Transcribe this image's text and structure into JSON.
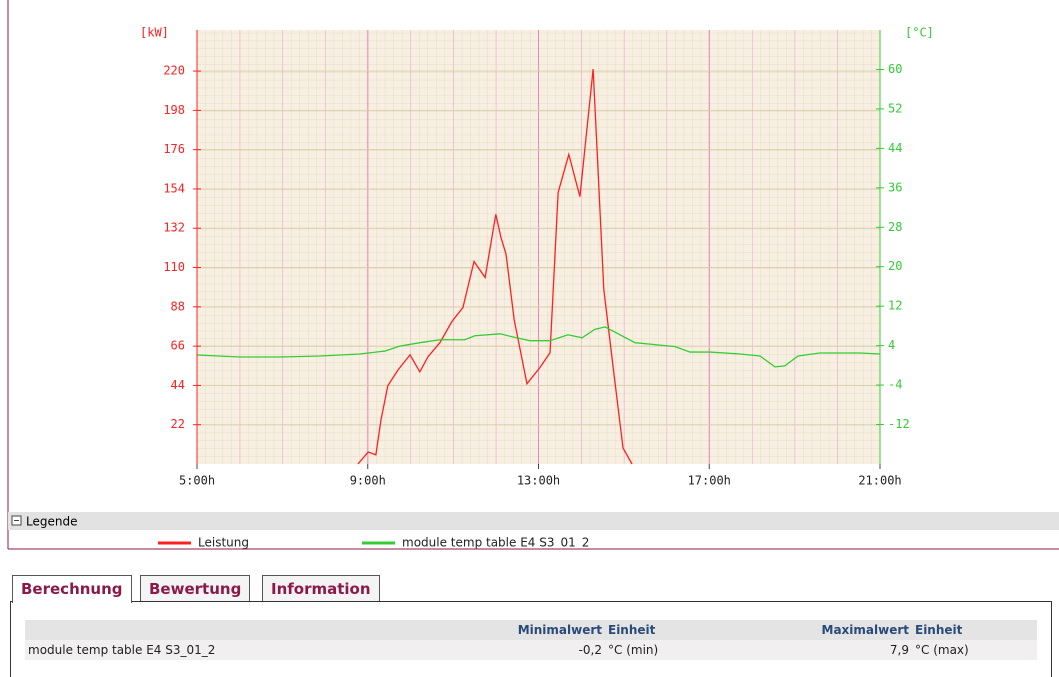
{
  "chart_data": {
    "type": "line",
    "y_label": "[kW]",
    "y2_label": "[°C]",
    "xlim": [
      5,
      21
    ],
    "xticks": [
      {
        "value": 5,
        "label": "5:00h"
      },
      {
        "value": 9,
        "label": "9:00h"
      },
      {
        "value": 13,
        "label": "13:00h"
      },
      {
        "value": 17,
        "label": "17:00h"
      },
      {
        "value": 21,
        "label": "21:00h"
      }
    ],
    "ylim": [
      0,
      243
    ],
    "yticks": [
      22,
      44,
      66,
      88,
      110,
      132,
      154,
      176,
      198,
      220
    ],
    "y2lim": [
      -20,
      68
    ],
    "y2ticks": [
      -12,
      -4,
      4,
      12,
      20,
      28,
      36,
      44,
      52,
      60
    ],
    "grid": true,
    "series": [
      {
        "name": "Leistung",
        "color": "#ff2020",
        "x": [
          8.77,
          9.01,
          9.19,
          9.31,
          9.47,
          9.71,
          9.99,
          10.22,
          10.41,
          10.69,
          10.97,
          11.23,
          11.49,
          11.75,
          12.0,
          12.12,
          12.24,
          12.43,
          12.73,
          13.03,
          13.27,
          13.46,
          13.71,
          13.97,
          14.28,
          14.53,
          14.77,
          14.98,
          15.19
        ],
        "values": [
          0,
          6.7,
          5.1,
          24.7,
          43.8,
          52.7,
          61.1,
          51.6,
          60.0,
          67.9,
          79.7,
          87.6,
          113.4,
          104.4,
          139.8,
          126.9,
          117.4,
          80.8,
          44.9,
          53.9,
          62.3,
          152.0,
          173.3,
          149.7,
          221.1,
          97.7,
          49.9,
          9.0,
          0
        ]
      },
      {
        "name": "module temp table E4 S3_01_2",
        "color": "#33cc33",
        "axis": "y2",
        "x": [
          5.0,
          6.01,
          6.94,
          7.88,
          8.82,
          9.4,
          9.75,
          10.22,
          10.69,
          11.27,
          11.51,
          12.1,
          12.38,
          12.8,
          13.27,
          13.69,
          14.02,
          14.32,
          14.56,
          14.91,
          15.26,
          15.73,
          16.2,
          16.55,
          17.02,
          17.72,
          18.19,
          18.54,
          18.77,
          19.08,
          19.59,
          20.53,
          21.0
        ],
        "values": [
          2.1,
          1.7,
          1.7,
          1.9,
          2.3,
          2.9,
          3.9,
          4.6,
          5.2,
          5.2,
          6.0,
          6.4,
          5.8,
          5.0,
          5.0,
          6.2,
          5.6,
          7.3,
          7.8,
          6.2,
          4.6,
          4.2,
          3.8,
          2.7,
          2.7,
          2.3,
          1.9,
          -0.3,
          -0.1,
          1.9,
          2.5,
          2.5,
          2.3
        ]
      }
    ]
  },
  "legend": {
    "title": "Legende"
  },
  "tabs": [
    "Berechnung",
    "Bewertung",
    "Information"
  ],
  "table": {
    "header": [
      "",
      "Minimalwert",
      "Einheit",
      "Maximalwert",
      "Einheit"
    ],
    "rows": [
      [
        "module temp table E4 S3_01_2",
        "-0,2",
        "°C (min)",
        "7,9",
        "°C (max)"
      ]
    ]
  }
}
